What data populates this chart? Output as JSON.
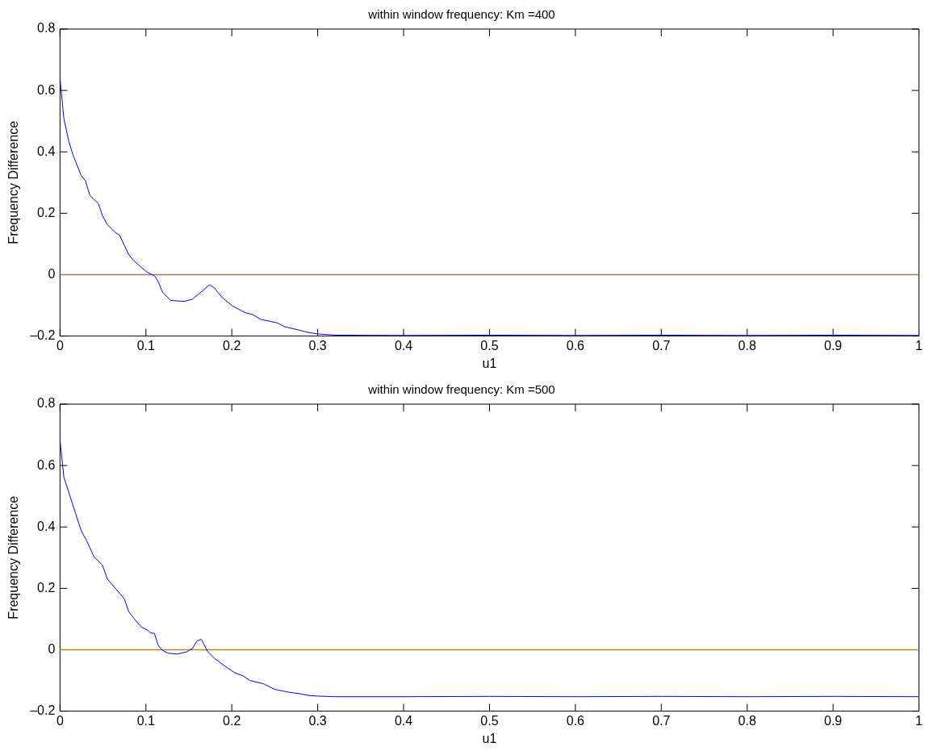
{
  "chart_data": [
    {
      "type": "line",
      "title": "within window frequency: Km =400",
      "xlabel": "u1",
      "ylabel": "Frequency Difference",
      "x": [
        0,
        0.0045,
        0.0102,
        0.015,
        0.0246,
        0.0294,
        0.0348,
        0.0447,
        0.0495,
        0.055,
        0.0645,
        0.0693,
        0.0799,
        0.0853,
        0.0933,
        0.1013,
        0.11,
        0.114,
        0.1195,
        0.129,
        0.1444,
        0.154,
        0.165,
        0.174,
        0.1796,
        0.189,
        0.2003,
        0.2147,
        0.224,
        0.234,
        0.253,
        0.261,
        0.2786,
        0.29,
        0.3,
        0.32,
        0.4,
        0.5,
        0.6,
        0.7,
        0.8,
        0.9,
        1
      ],
      "series": [
        {
          "color": "#0000ff",
          "values": [
            0.639,
            0.508,
            0.435,
            0.391,
            0.323,
            0.307,
            0.258,
            0.231,
            0.192,
            0.163,
            0.137,
            0.129,
            0.066,
            0.047,
            0.027,
            0.008,
            -0.004,
            -0.021,
            -0.058,
            -0.084,
            -0.087,
            -0.08,
            -0.055,
            -0.033,
            -0.043,
            -0.075,
            -0.101,
            -0.123,
            -0.13,
            -0.146,
            -0.157,
            -0.169,
            -0.181,
            -0.189,
            -0.193,
            -0.197,
            -0.198,
            -0.197,
            -0.198,
            -0.197,
            -0.198,
            -0.197,
            -0.198
          ]
        }
      ],
      "ref_lines": [
        {
          "axis": "y",
          "value": 0,
          "color": "#a0804a"
        }
      ],
      "xlim": [
        0,
        1
      ],
      "xticks": [
        0,
        0.1,
        0.2,
        0.3,
        0.4,
        0.5,
        0.6,
        0.7,
        0.8,
        0.9,
        1
      ],
      "ylim": [
        -0.2,
        0.8
      ],
      "yticks": [
        {
          "value": -0.2,
          "label": "–0.2"
        },
        0,
        0.2,
        0.4,
        0.6,
        0.8
      ],
      "grid": false,
      "legend": false,
      "marker": "none",
      "line_style": "solid"
    },
    {
      "type": "line",
      "title": "within window frequency: Km =500",
      "xlabel": "u1",
      "ylabel": "Frequency Difference",
      "x": [
        0,
        0.0045,
        0.015,
        0.0246,
        0.031,
        0.0396,
        0.0495,
        0.055,
        0.063,
        0.0748,
        0.0799,
        0.0869,
        0.0949,
        0.1013,
        0.1054,
        0.11,
        0.114,
        0.1188,
        0.1252,
        0.1364,
        0.1476,
        0.154,
        0.1597,
        0.1645,
        0.1716,
        0.1796,
        0.1907,
        0.2035,
        0.213,
        0.221,
        0.237,
        0.2498,
        0.2658,
        0.2786,
        0.29,
        0.3,
        0.32,
        0.4,
        0.5,
        0.6,
        0.7,
        0.8,
        0.9,
        1
      ],
      "series": [
        {
          "color": "#0000ff",
          "values": [
            0.683,
            0.562,
            0.471,
            0.388,
            0.355,
            0.303,
            0.275,
            0.231,
            0.205,
            0.166,
            0.125,
            0.099,
            0.074,
            0.065,
            0.055,
            0.053,
            0.016,
            -0.001,
            -0.011,
            -0.014,
            -0.007,
            0.004,
            0.029,
            0.034,
            -0.005,
            -0.027,
            -0.051,
            -0.075,
            -0.085,
            -0.1,
            -0.111,
            -0.129,
            -0.138,
            -0.143,
            -0.149,
            -0.151,
            -0.153,
            -0.153,
            -0.152,
            -0.153,
            -0.152,
            -0.153,
            -0.152,
            -0.153
          ]
        }
      ],
      "ref_lines": [
        {
          "axis": "y",
          "value": 0,
          "color": "#b08c1e"
        }
      ],
      "xlim": [
        0,
        1
      ],
      "xticks": [
        0,
        0.1,
        0.2,
        0.3,
        0.4,
        0.5,
        0.6,
        0.7,
        0.8,
        0.9,
        1
      ],
      "ylim": [
        -0.2,
        0.8
      ],
      "yticks": [
        {
          "value": -0.2,
          "label": "–0.2"
        },
        0,
        0.2,
        0.4,
        0.6,
        0.8
      ],
      "grid": false,
      "legend": false,
      "marker": "none",
      "line_style": "solid"
    }
  ]
}
